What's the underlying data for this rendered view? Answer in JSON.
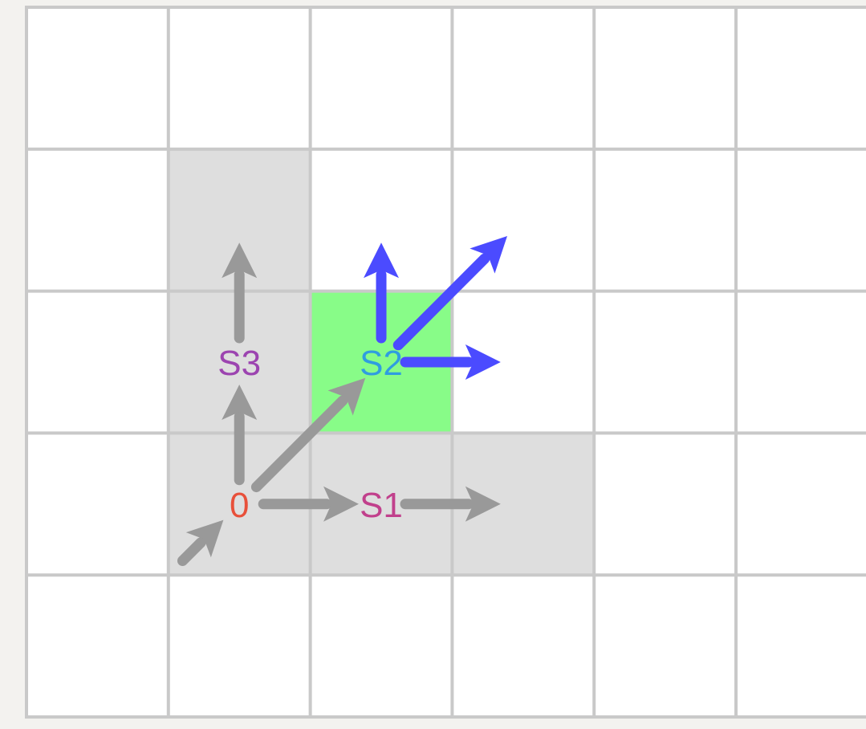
{
  "grid": {
    "columns": 6,
    "rows": 5,
    "grid_line_color": "#c9c9c9",
    "cell_color": "#ffffff",
    "background_color": "#f3f2ef"
  },
  "highlighted_cells": [
    {
      "id": "cell-s3-upper",
      "col": 1,
      "row": 1,
      "color": "#dedede"
    },
    {
      "id": "cell-s3",
      "col": 1,
      "row": 2,
      "color": "#dedede"
    },
    {
      "id": "cell-origin",
      "col": 1,
      "row": 3,
      "color": "#dedede"
    },
    {
      "id": "cell-s1",
      "col": 2,
      "row": 3,
      "color": "#dedede"
    },
    {
      "id": "cell-s1-right",
      "col": 3,
      "row": 3,
      "color": "#dedede"
    },
    {
      "id": "cell-s2",
      "col": 2,
      "row": 2,
      "color": "#88fc88"
    }
  ],
  "nodes": [
    {
      "id": "origin",
      "label": "0",
      "col": 1,
      "row": 3,
      "color": "#e8503a"
    },
    {
      "id": "s1",
      "label": "S1",
      "col": 2,
      "row": 3,
      "color": "#c1408c"
    },
    {
      "id": "s2",
      "label": "S2",
      "col": 2,
      "row": 2,
      "color": "#2f9de0"
    },
    {
      "id": "s3",
      "label": "S3",
      "col": 1,
      "row": 2,
      "color": "#9c44b0"
    }
  ],
  "arrows": [
    {
      "id": "incoming-diagonal",
      "from": [
        0.6,
        4.4
      ],
      "to": [
        1,
        4
      ],
      "color": "gray"
    },
    {
      "id": "origin-to-s1",
      "from": [
        1,
        4
      ],
      "to": [
        2,
        4
      ],
      "color": "gray"
    },
    {
      "id": "s1-to-right",
      "from": [
        2,
        4
      ],
      "to": [
        3,
        4
      ],
      "color": "gray"
    },
    {
      "id": "origin-to-s3",
      "from": [
        1,
        4
      ],
      "to": [
        1,
        3
      ],
      "color": "gray"
    },
    {
      "id": "s3-to-up",
      "from": [
        1,
        3
      ],
      "to": [
        1,
        2
      ],
      "color": "gray"
    },
    {
      "id": "origin-to-s2",
      "from": [
        1,
        4
      ],
      "to": [
        2,
        3
      ],
      "color": "gray"
    },
    {
      "id": "s2-to-up",
      "from": [
        2,
        3
      ],
      "to": [
        2,
        2
      ],
      "color": "blue"
    },
    {
      "id": "s2-to-diagonal",
      "from": [
        2,
        3
      ],
      "to": [
        3,
        2
      ],
      "color": "blue"
    },
    {
      "id": "s2-to-right",
      "from": [
        2,
        3
      ],
      "to": [
        3,
        3
      ],
      "color": "blue"
    }
  ],
  "colors": {
    "gray": "#999999",
    "blue": "#4b4bff"
  }
}
